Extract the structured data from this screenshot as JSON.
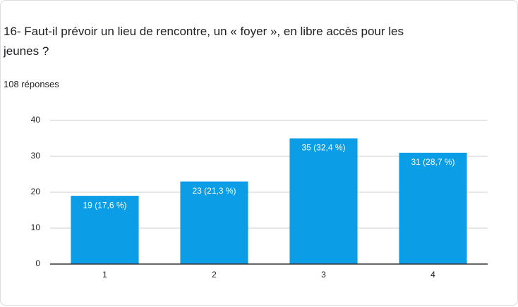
{
  "chart_data": {
    "type": "bar",
    "title": "16- Faut-il prévoir un lieu de rencontre, un « foyer », en libre accès pour les jeunes ?",
    "subtitle": "108 réponses",
    "categories": [
      "1",
      "2",
      "3",
      "4"
    ],
    "values": [
      19,
      23,
      35,
      31
    ],
    "value_labels": [
      "19 (17,6 %)",
      "23 (21,3 %)",
      "35 (32,4 %)",
      "31 (28,7 %)"
    ],
    "color": "#0b9de6",
    "ylim": [
      0,
      40
    ],
    "yticks": [
      0,
      10,
      20,
      30,
      40
    ],
    "grid": true
  }
}
